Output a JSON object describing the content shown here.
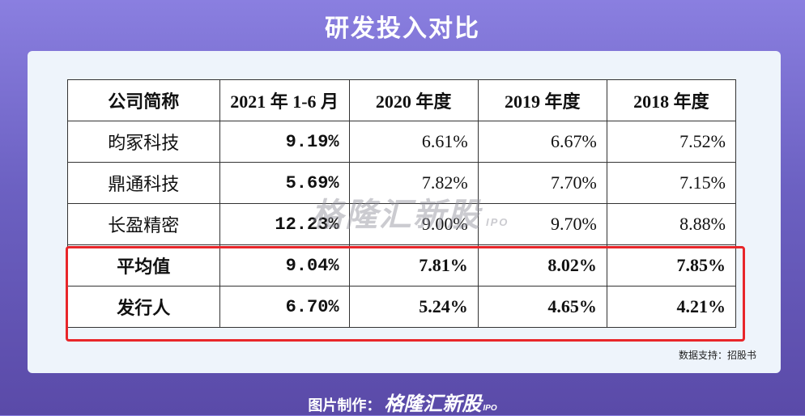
{
  "title": "研发投入对比",
  "table": {
    "headers": [
      "公司简称",
      "2021 年 1-6 月",
      "2020 年度",
      "2019 年度",
      "2018 年度"
    ],
    "rows": [
      {
        "name": "昀冢科技",
        "values": [
          "9.19%",
          "6.61%",
          "6.67%",
          "7.52%"
        ]
      },
      {
        "name": "鼎通科技",
        "values": [
          "5.69%",
          "7.82%",
          "7.70%",
          "7.15%"
        ]
      },
      {
        "name": "长盈精密",
        "values": [
          "12.23%",
          "9.00%",
          "9.70%",
          "8.88%"
        ]
      },
      {
        "name": "平均值",
        "values": [
          "9.04%",
          "7.81%",
          "8.02%",
          "7.85%"
        ]
      },
      {
        "name": "发行人",
        "values": [
          "6.70%",
          "5.24%",
          "4.65%",
          "4.21%"
        ]
      }
    ]
  },
  "watermark": {
    "text": "格隆汇新股",
    "sub": "IPO"
  },
  "source": "数据支持：招股书",
  "footer": {
    "prefix": "图片制作：",
    "logo": "格隆汇新股",
    "logo_sub": "IPO"
  },
  "colors": {
    "highlight": "#e8262a",
    "background": "#7368c8"
  }
}
